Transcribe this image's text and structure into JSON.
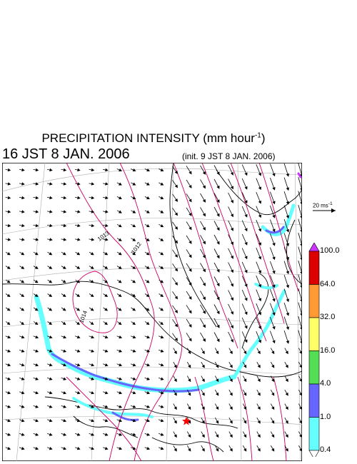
{
  "header": {
    "title": "PRECIPITATION INTENSITY (mm hour",
    "title_exp": "-1",
    "title_close": ")",
    "valid_time": "16 JST 8 JAN. 2006",
    "init_time": "(init. 9 JST 8 JAN. 2006)"
  },
  "reference_vector": {
    "label": "20 ms",
    "exp": "-1"
  },
  "isobar_labels": [
    "1013",
    "1012",
    "1014"
  ],
  "colorbar": {
    "labels": [
      "100.0",
      "64.0",
      "32.0",
      "16.0",
      "4.0",
      "1.0",
      "0.4"
    ],
    "colors": [
      "#dd0000",
      "#ff9933",
      "#ffff66",
      "#55dd55",
      "#6666ff",
      "#66ffff"
    ],
    "over_color": "#cc33ff",
    "under_color": "#ffffff"
  },
  "colors": {
    "isobar": "#cc0066",
    "coast": "#000000",
    "grid": "#aaaaaa",
    "marker": "#ff0000"
  }
}
